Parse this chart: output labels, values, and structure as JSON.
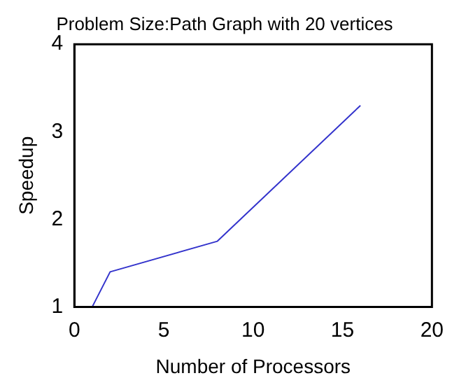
{
  "chart_data": {
    "type": "line",
    "title": "Problem Size:Path Graph with 20 vertices",
    "xlabel": "Number of Processors",
    "ylabel": "Speedup",
    "x": [
      1,
      2,
      8,
      16
    ],
    "series": [
      {
        "color": "#3333cc",
        "values": [
          1,
          1.4,
          1.75,
          3.3
        ]
      }
    ],
    "xlim": [
      0,
      20
    ],
    "xticks": [
      0,
      5,
      10,
      15,
      20
    ],
    "ylim": [
      1,
      4
    ],
    "yticks": [
      1,
      2,
      3,
      4
    ],
    "grid": false,
    "legend": false,
    "marker": "none",
    "line_style": "solid"
  }
}
